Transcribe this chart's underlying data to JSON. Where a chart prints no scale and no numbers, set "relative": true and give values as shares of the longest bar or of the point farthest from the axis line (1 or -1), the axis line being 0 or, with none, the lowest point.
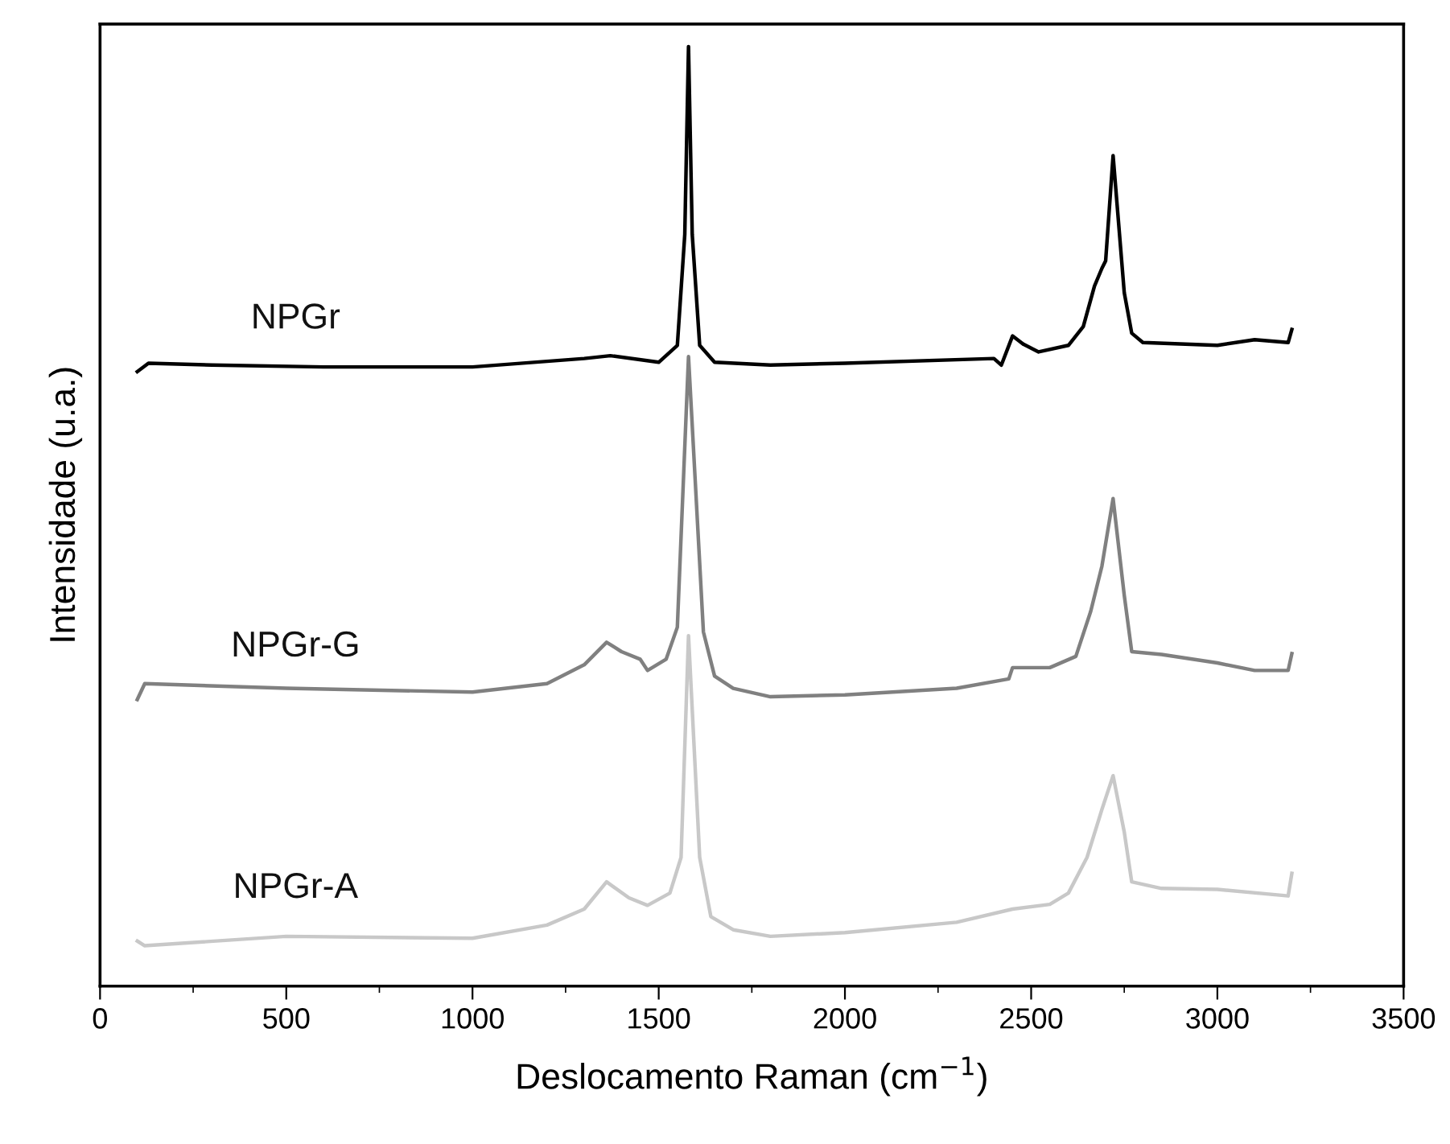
{
  "chart_data": {
    "type": "line",
    "relative": true,
    "xlabel": "Deslocamento Raman (cm$^{−1}$)",
    "ylabel": "Intensidade (u.a.)",
    "xlim": [
      0,
      3500
    ],
    "xticks": [
      0,
      500,
      1000,
      1500,
      2000,
      2500,
      3000,
      3500
    ],
    "grid": false,
    "legend": false,
    "tick_labels": "x",
    "marker": "none",
    "line_style": "solid",
    "series": [
      {
        "name": "NPGr",
        "color": "#000000",
        "x": [
          100,
          130,
          300,
          600,
          1000,
          1300,
          1370,
          1500,
          1550,
          1570,
          1580,
          1590,
          1610,
          1650,
          1800,
          2000,
          2400,
          2420,
          2450,
          2480,
          2520,
          2600,
          2640,
          2670,
          2690,
          2700,
          2720,
          2750,
          2770,
          2800,
          3000,
          3100,
          3190,
          3200
        ],
        "values": [
          0.654,
          0.663,
          0.661,
          0.659,
          0.659,
          0.668,
          0.671,
          0.664,
          0.682,
          0.8,
          1.0,
          0.8,
          0.682,
          0.664,
          0.661,
          0.663,
          0.668,
          0.661,
          0.692,
          0.683,
          0.675,
          0.682,
          0.702,
          0.745,
          0.764,
          0.772,
          0.884,
          0.738,
          0.695,
          0.685,
          0.682,
          0.688,
          0.685,
          0.699
        ]
      },
      {
        "name": "NPGr-G",
        "color": "#808080",
        "x": [
          100,
          120,
          500,
          1000,
          1200,
          1300,
          1360,
          1400,
          1450,
          1470,
          1520,
          1550,
          1580,
          1620,
          1650,
          1700,
          1800,
          2000,
          2300,
          2440,
          2450,
          2550,
          2620,
          2660,
          2690,
          2720,
          2750,
          2770,
          2850,
          3000,
          3100,
          3190,
          3200
        ],
        "values": [
          0.305,
          0.322,
          0.317,
          0.313,
          0.322,
          0.342,
          0.366,
          0.356,
          0.348,
          0.336,
          0.348,
          0.382,
          0.67,
          0.377,
          0.33,
          0.317,
          0.308,
          0.31,
          0.317,
          0.327,
          0.339,
          0.339,
          0.351,
          0.399,
          0.447,
          0.519,
          0.416,
          0.356,
          0.353,
          0.344,
          0.336,
          0.336,
          0.354
        ]
      },
      {
        "name": "NPGr-A",
        "color": "#c8c8c8",
        "x": [
          100,
          120,
          500,
          1000,
          1200,
          1300,
          1360,
          1420,
          1470,
          1530,
          1560,
          1580,
          1610,
          1640,
          1700,
          1800,
          2000,
          2300,
          2450,
          2550,
          2600,
          2650,
          2690,
          2720,
          2750,
          2770,
          2850,
          3000,
          3190,
          3200
        ],
        "values": [
          0.048,
          0.043,
          0.053,
          0.051,
          0.065,
          0.082,
          0.111,
          0.094,
          0.086,
          0.099,
          0.137,
          0.373,
          0.137,
          0.074,
          0.06,
          0.053,
          0.057,
          0.068,
          0.082,
          0.087,
          0.099,
          0.137,
          0.188,
          0.224,
          0.164,
          0.111,
          0.104,
          0.103,
          0.096,
          0.12
        ]
      }
    ]
  }
}
